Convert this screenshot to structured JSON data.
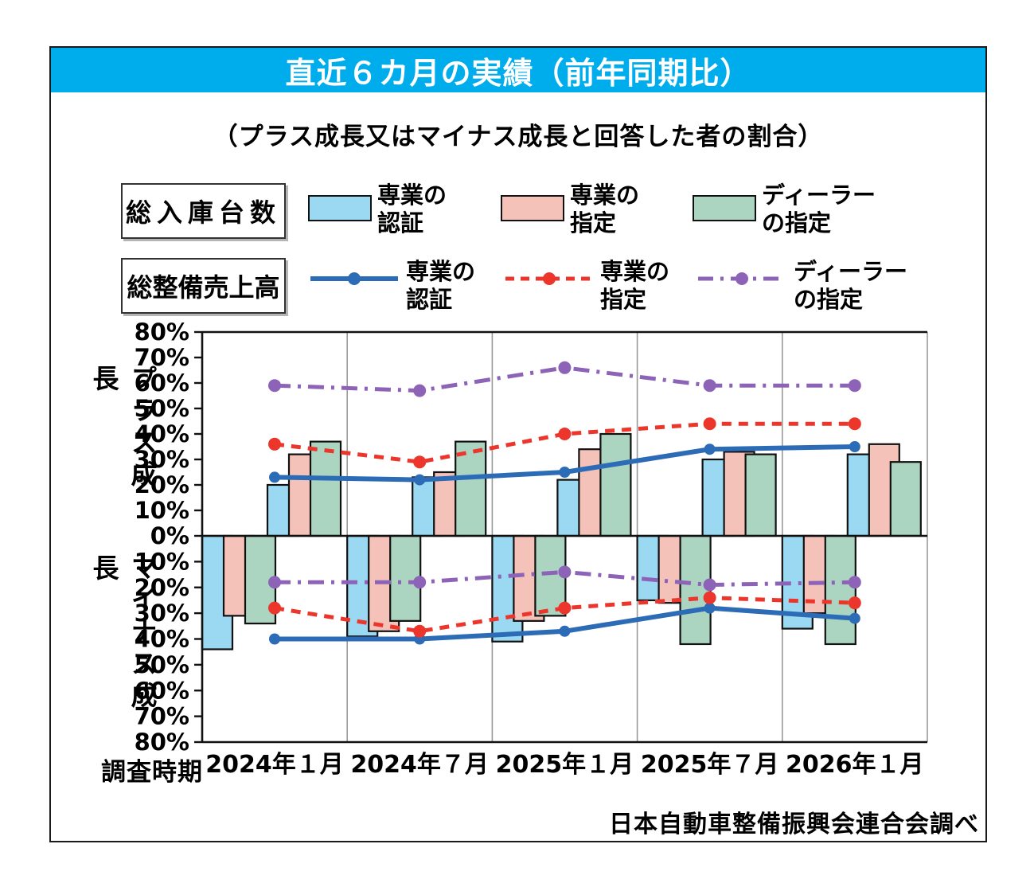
{
  "header": {
    "title": "直近６カ月の実績（前年同期比）",
    "subtitle": "（プラス成長又はマイナス成長と回答した者の割合）"
  },
  "legend": {
    "rows": [
      {
        "group_label": "総入庫台数",
        "swatch_type": "bar",
        "items": [
          {
            "line1": "専業の",
            "line2": "認証",
            "color": "#9BD9F2"
          },
          {
            "line1": "専業の",
            "line2": "指定",
            "color": "#F5C2BA"
          },
          {
            "line1": "ディーラー",
            "line2": "の指定",
            "color": "#ACD5C1"
          }
        ]
      },
      {
        "group_label": "総整備売上高",
        "swatch_type": "line",
        "items": [
          {
            "line1": "専業の",
            "line2": "認証",
            "color": "#2C6CB6",
            "style": "solid"
          },
          {
            "line1": "専業の",
            "line2": "指定",
            "color": "#EC352B",
            "style": "dashed"
          },
          {
            "line1": "ディーラー",
            "line2": "の指定",
            "color": "#8D63B8",
            "style": "dashdot"
          }
        ]
      }
    ]
  },
  "footer": {
    "source": "日本自動車整備振興会連合会調べ"
  },
  "chart_data": {
    "type": "bar",
    "subtype": "mirrored positive/negative bar + line combo",
    "categories": [
      "2024年１月",
      "2024年７月",
      "2025年１月",
      "2025年７月",
      "2026年１月"
    ],
    "x_axis_title": "調査時期",
    "y_axis": {
      "top_label": "プラス成長",
      "bottom_label": "マイナス成長",
      "unit": "%",
      "top_range": [
        0,
        80
      ],
      "bottom_range": [
        0,
        80
      ],
      "tick_step": 10,
      "grid": "vertical category separators only"
    },
    "bar_group_title": "総入庫台数",
    "line_group_title": "総整備売上高",
    "bar_series": [
      {
        "name": "専業の認証",
        "color": "#9BD9F2",
        "positive": [
          20,
          23,
          22,
          30,
          32
        ],
        "negative": [
          44,
          39,
          41,
          25,
          36
        ]
      },
      {
        "name": "専業の指定",
        "color": "#F5C2BA",
        "positive": [
          32,
          25,
          34,
          33,
          36
        ],
        "negative": [
          31,
          37,
          33,
          26,
          30
        ]
      },
      {
        "name": "ディーラーの指定",
        "color": "#ACD5C1",
        "positive": [
          37,
          37,
          40,
          32,
          29
        ],
        "negative": [
          34,
          33,
          31,
          42,
          42
        ]
      }
    ],
    "line_series": [
      {
        "name": "専業の認証",
        "color": "#2C6CB6",
        "style": "solid",
        "positive": [
          23,
          22,
          25,
          34,
          35
        ],
        "negative": [
          40,
          40,
          37,
          28,
          32
        ]
      },
      {
        "name": "専業の指定",
        "color": "#EC352B",
        "style": "dashed",
        "positive": [
          36,
          29,
          40,
          44,
          44
        ],
        "negative": [
          28,
          37,
          28,
          24,
          26
        ]
      },
      {
        "name": "ディーラーの指定",
        "color": "#8D63B8",
        "style": "dashdot",
        "positive": [
          59,
          57,
          66,
          59,
          59
        ],
        "negative": [
          18,
          18,
          14,
          19,
          18
        ]
      }
    ]
  }
}
